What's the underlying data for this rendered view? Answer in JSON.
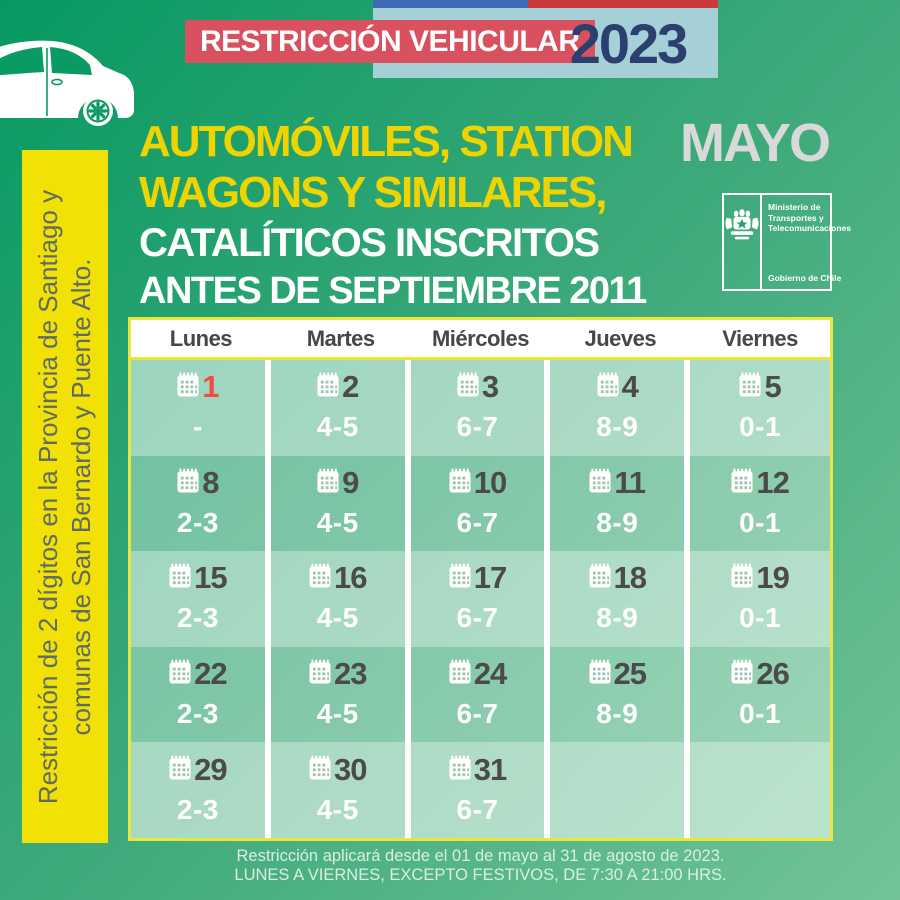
{
  "top_banner": {
    "title": "RESTRICCIÓN VEHICULAR",
    "year": "2023"
  },
  "title": {
    "line1": "AUTOMÓVILES, STATION",
    "line2": "WAGONS Y SIMILARES,",
    "line3": "CATALÍTICOS INSCRITOS",
    "line4": "ANTES DE SEPTIEMBRE 2011"
  },
  "month_label": "MAYO",
  "gov_logo": {
    "ministry": "Ministerio de\nTransportes y\nTelecomunicaciones",
    "government": "Gobierno de Chile"
  },
  "sidebar": {
    "note": "Restricción de 2 dígitos en la Provincia de Santiago y\ncomunas de San Bernardo y Puente Alto."
  },
  "calendar": {
    "day_headers": [
      "Lunes",
      "Martes",
      "Miércoles",
      "Jueves",
      "Viernes"
    ],
    "weeks": [
      [
        {
          "day": "1",
          "digits": "-",
          "holiday": true
        },
        {
          "day": "2",
          "digits": "4-5"
        },
        {
          "day": "3",
          "digits": "6-7"
        },
        {
          "day": "4",
          "digits": "8-9"
        },
        {
          "day": "5",
          "digits": "0-1"
        }
      ],
      [
        {
          "day": "8",
          "digits": "2-3"
        },
        {
          "day": "9",
          "digits": "4-5"
        },
        {
          "day": "10",
          "digits": "6-7"
        },
        {
          "day": "11",
          "digits": "8-9"
        },
        {
          "day": "12",
          "digits": "0-1"
        }
      ],
      [
        {
          "day": "15",
          "digits": "2-3"
        },
        {
          "day": "16",
          "digits": "4-5"
        },
        {
          "day": "17",
          "digits": "6-7"
        },
        {
          "day": "18",
          "digits": "8-9"
        },
        {
          "day": "19",
          "digits": "0-1"
        }
      ],
      [
        {
          "day": "22",
          "digits": "2-3"
        },
        {
          "day": "23",
          "digits": "4-5"
        },
        {
          "day": "24",
          "digits": "6-7"
        },
        {
          "day": "25",
          "digits": "8-9"
        },
        {
          "day": "26",
          "digits": "0-1"
        }
      ],
      [
        {
          "day": "29",
          "digits": "2-3"
        },
        {
          "day": "30",
          "digits": "4-5"
        },
        {
          "day": "31",
          "digits": "6-7"
        },
        null,
        null
      ]
    ]
  },
  "footer": {
    "line1": "Restricción aplicará desde el 01 de mayo al 31 de agosto de 2023.",
    "line2": "LUNES A VIERNES, EXCEPTO FESTIVOS, DE 7:30 A 21:00 HRS."
  },
  "colors": {
    "background_green_dark": "#079962",
    "background_green_light": "#72c496",
    "banner_red": "#d9515f",
    "stripe_red": "#ca393d",
    "stripe_blue": "#3d6cb4",
    "year_panel_blue": "#a6d0d8",
    "year_navy": "#2c4070",
    "heading_yellow": "#f0d400",
    "sidebar_yellow": "#f1e104",
    "table_border_yellow": "#e9e63d",
    "holiday_red": "#f24b42",
    "day_number_gray": "#4b4b4b",
    "month_gray": "#d9d9d9"
  }
}
